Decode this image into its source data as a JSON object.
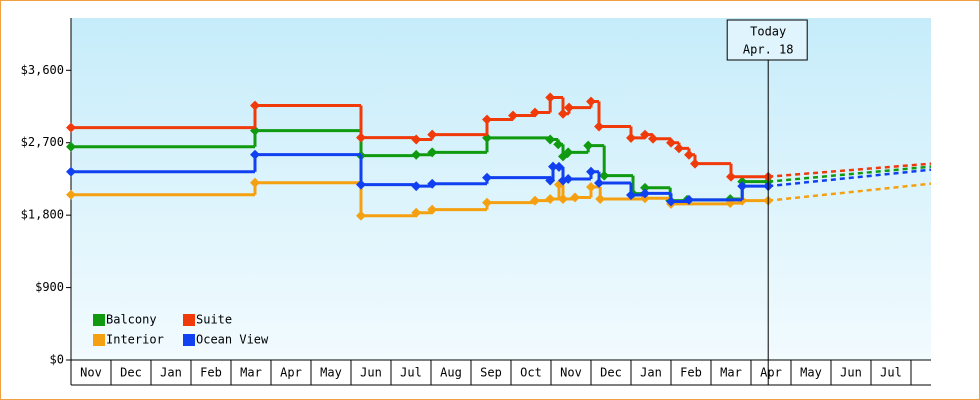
{
  "chart_data": {
    "type": "step-line",
    "xlim": [
      0,
      21.5
    ],
    "ylim": [
      0,
      4250
    ],
    "yticks": [
      {
        "value": 0,
        "label": "$0"
      },
      {
        "value": 900,
        "label": "$900"
      },
      {
        "value": 1800,
        "label": "$1,800"
      },
      {
        "value": 2700,
        "label": "$2,700"
      },
      {
        "value": 3600,
        "label": "$3,600"
      }
    ],
    "xticks": [
      {
        "value": 0.5,
        "label": "Nov"
      },
      {
        "value": 1.5,
        "label": "Dec"
      },
      {
        "value": 2.5,
        "label": "Jan"
      },
      {
        "value": 3.5,
        "label": "Feb"
      },
      {
        "value": 4.5,
        "label": "Mar"
      },
      {
        "value": 5.5,
        "label": "Apr"
      },
      {
        "value": 6.5,
        "label": "May"
      },
      {
        "value": 7.5,
        "label": "Jun"
      },
      {
        "value": 8.5,
        "label": "Jul"
      },
      {
        "value": 9.5,
        "label": "Aug"
      },
      {
        "value": 10.5,
        "label": "Sep"
      },
      {
        "value": 11.5,
        "label": "Oct"
      },
      {
        "value": 12.5,
        "label": "Nov"
      },
      {
        "value": 13.5,
        "label": "Dec"
      },
      {
        "value": 14.5,
        "label": "Jan"
      },
      {
        "value": 15.5,
        "label": "Feb"
      },
      {
        "value": 16.5,
        "label": "Mar"
      },
      {
        "value": 17.5,
        "label": "Apr"
      },
      {
        "value": 18.5,
        "label": "May"
      },
      {
        "value": 19.5,
        "label": "Jun"
      },
      {
        "value": 20.5,
        "label": "Jul"
      }
    ],
    "today": {
      "x": 17.43,
      "label": [
        "Today",
        "Apr. 18"
      ]
    },
    "forecast_x": [
      17.43,
      21.5
    ],
    "series": [
      {
        "name": "Balcony",
        "color": "#109a10",
        "x": [
          0,
          4.6,
          7.25,
          8.63,
          9.03,
          10.4,
          11.98,
          12.18,
          12.3,
          12.43,
          12.93,
          13.33,
          14.05,
          14.35,
          14.98,
          15.4,
          16.48,
          16.78,
          17.43
        ],
        "values": [
          2650,
          2850,
          2540,
          2550,
          2580,
          2760,
          2740,
          2680,
          2530,
          2580,
          2664,
          2291,
          2067,
          2140,
          1980,
          1990,
          2000,
          2216,
          2216
        ],
        "forecast": [
          2216,
          2403
        ]
      },
      {
        "name": "Suite",
        "color": "#f03a0a",
        "x": [
          0,
          4.6,
          7.25,
          8.63,
          9.03,
          10.4,
          11.05,
          11.6,
          11.98,
          12.3,
          12.45,
          13.0,
          13.2,
          14.0,
          14.35,
          14.55,
          15.0,
          15.2,
          15.45,
          15.6,
          16.5,
          17.43
        ],
        "values": [
          2888,
          3162,
          2764,
          2740,
          2801,
          2988,
          3038,
          3075,
          3262,
          3060,
          3137,
          3212,
          2901,
          2760,
          2800,
          2750,
          2700,
          2630,
          2550,
          2440,
          2278,
          2278
        ],
        "forecast": [
          2278,
          2440
        ]
      },
      {
        "name": "Interior",
        "color": "#f5a010",
        "x": [
          0,
          4.6,
          7.25,
          8.63,
          9.03,
          10.4,
          11.6,
          11.98,
          12.2,
          12.3,
          12.6,
          13.0,
          13.23,
          14.35,
          15.0,
          16.48,
          16.78,
          17.43
        ],
        "values": [
          2054,
          2203,
          1793,
          1830,
          1868,
          1955,
          1980,
          2000,
          2180,
          2000,
          2020,
          2150,
          2000,
          2010,
          1940,
          1950,
          1980,
          1980
        ],
        "forecast": [
          1980,
          2191
        ]
      },
      {
        "name": "Ocean View",
        "color": "#1040f0",
        "x": [
          0,
          4.6,
          7.25,
          8.63,
          9.03,
          10.4,
          11.98,
          12.05,
          12.2,
          12.3,
          12.43,
          13.0,
          13.2,
          14.0,
          14.35,
          15.0,
          15.45,
          16.78,
          17.43
        ],
        "values": [
          2340,
          2552,
          2179,
          2160,
          2190,
          2266,
          2230,
          2403,
          2400,
          2230,
          2250,
          2340,
          2200,
          2050,
          2070,
          1970,
          1990,
          2160,
          2160
        ],
        "forecast": [
          2160,
          2365
        ]
      }
    ]
  }
}
